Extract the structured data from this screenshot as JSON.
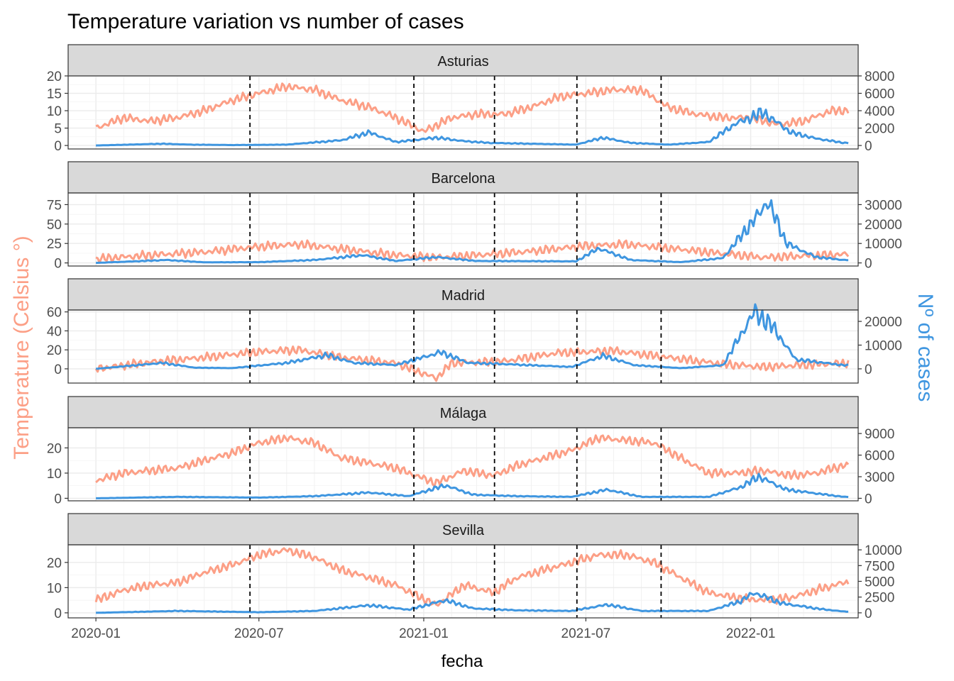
{
  "chart_data": {
    "type": "line",
    "title": "Temperature variation vs number of cases",
    "xlabel": "fecha",
    "ylabel_left": "Temperature (Celsius °)",
    "ylabel_right": "Nº of cases",
    "x_ticks": [
      "2020-01",
      "2020-07",
      "2021-01",
      "2021-07",
      "2022-01"
    ],
    "x_range": [
      "2019-12-01",
      "2022-05-01"
    ],
    "vertical_dashed_lines": [
      "2020-06-21",
      "2020-12-21",
      "2021-03-21",
      "2021-06-21",
      "2021-09-23"
    ],
    "grid": true,
    "series_colors": {
      "temperature": "#FC9F86",
      "cases": "#3F96E0"
    },
    "panels": [
      {
        "name": "Asturias",
        "temp_ticks": [
          0,
          5,
          10,
          15,
          20
        ],
        "case_ticks": [
          0,
          2000,
          4000,
          6000,
          8000
        ],
        "temp_range": [
          -1,
          20
        ],
        "cases_per_temp": 400,
        "temperature": [
          [
            "2020-01-01",
            5
          ],
          [
            "2020-02-01",
            8
          ],
          [
            "2020-03-01",
            7
          ],
          [
            "2020-04-01",
            8
          ],
          [
            "2020-05-01",
            10
          ],
          [
            "2020-06-01",
            13
          ],
          [
            "2020-07-01",
            15
          ],
          [
            "2020-08-01",
            17
          ],
          [
            "2020-09-01",
            16
          ],
          [
            "2020-10-01",
            13
          ],
          [
            "2020-11-01",
            11
          ],
          [
            "2020-12-01",
            8
          ],
          [
            "2021-01-01",
            4
          ],
          [
            "2021-02-01",
            8
          ],
          [
            "2021-03-01",
            9
          ],
          [
            "2021-04-01",
            9
          ],
          [
            "2021-05-01",
            11
          ],
          [
            "2021-06-01",
            14
          ],
          [
            "2021-07-01",
            15
          ],
          [
            "2021-08-01",
            16
          ],
          [
            "2021-09-01",
            16
          ],
          [
            "2021-10-01",
            11
          ],
          [
            "2021-11-01",
            9
          ],
          [
            "2021-12-01",
            8
          ],
          [
            "2022-01-01",
            8
          ],
          [
            "2022-02-01",
            6
          ],
          [
            "2022-03-01",
            7
          ],
          [
            "2022-04-01",
            10
          ]
        ],
        "cases": [
          [
            "2020-01-01",
            0
          ],
          [
            "2020-03-15",
            200
          ],
          [
            "2020-04-15",
            100
          ],
          [
            "2020-06-01",
            50
          ],
          [
            "2020-08-01",
            100
          ],
          [
            "2020-10-01",
            600
          ],
          [
            "2020-11-01",
            1500
          ],
          [
            "2020-12-01",
            400
          ],
          [
            "2021-01-15",
            900
          ],
          [
            "2021-02-15",
            500
          ],
          [
            "2021-03-15",
            300
          ],
          [
            "2021-05-01",
            200
          ],
          [
            "2021-06-20",
            100
          ],
          [
            "2021-07-20",
            900
          ],
          [
            "2021-08-20",
            300
          ],
          [
            "2021-10-01",
            100
          ],
          [
            "2021-11-15",
            400
          ],
          [
            "2021-12-15",
            2500
          ],
          [
            "2022-01-15",
            3800
          ],
          [
            "2022-02-15",
            1500
          ],
          [
            "2022-03-15",
            800
          ],
          [
            "2022-04-15",
            300
          ]
        ]
      },
      {
        "name": "Barcelona",
        "temp_ticks": [
          0,
          25,
          50,
          75
        ],
        "case_ticks": [
          0,
          10000,
          20000,
          30000
        ],
        "temp_range": [
          -4,
          90
        ],
        "cases_per_temp": 400,
        "temperature": [
          [
            "2020-01-01",
            5
          ],
          [
            "2020-03-01",
            10
          ],
          [
            "2020-05-01",
            14
          ],
          [
            "2020-07-01",
            21
          ],
          [
            "2020-08-15",
            24
          ],
          [
            "2020-10-01",
            18
          ],
          [
            "2020-12-01",
            10
          ],
          [
            "2021-01-15",
            7
          ],
          [
            "2021-03-01",
            10
          ],
          [
            "2021-05-01",
            15
          ],
          [
            "2021-07-01",
            22
          ],
          [
            "2021-08-15",
            24
          ],
          [
            "2021-10-01",
            19
          ],
          [
            "2021-12-01",
            12
          ],
          [
            "2022-01-15",
            7
          ],
          [
            "2022-03-01",
            9
          ],
          [
            "2022-04-15",
            11
          ]
        ],
        "cases": [
          [
            "2020-01-01",
            0
          ],
          [
            "2020-03-20",
            1500
          ],
          [
            "2020-05-01",
            300
          ],
          [
            "2020-07-01",
            400
          ],
          [
            "2020-09-01",
            1500
          ],
          [
            "2020-10-25",
            4000
          ],
          [
            "2020-12-01",
            1000
          ],
          [
            "2021-01-15",
            3000
          ],
          [
            "2021-03-01",
            1000
          ],
          [
            "2021-05-01",
            900
          ],
          [
            "2021-06-20",
            800
          ],
          [
            "2021-07-15",
            7500
          ],
          [
            "2021-08-20",
            1500
          ],
          [
            "2021-10-15",
            400
          ],
          [
            "2021-12-01",
            2500
          ],
          [
            "2021-12-25",
            16000
          ],
          [
            "2022-01-10",
            25000
          ],
          [
            "2022-01-20",
            32000
          ],
          [
            "2022-02-10",
            10000
          ],
          [
            "2022-03-15",
            3000
          ],
          [
            "2022-04-15",
            1500
          ]
        ]
      },
      {
        "name": "Madrid",
        "temp_ticks": [
          0,
          20,
          40,
          60
        ],
        "case_ticks": [
          0,
          10000,
          20000
        ],
        "temp_range": [
          -15,
          62
        ],
        "cases_per_temp": 400,
        "temperature": [
          [
            "2020-01-01",
            0
          ],
          [
            "2020-03-01",
            7
          ],
          [
            "2020-05-01",
            12
          ],
          [
            "2020-07-01",
            18
          ],
          [
            "2020-08-15",
            20
          ],
          [
            "2020-10-01",
            12
          ],
          [
            "2020-12-01",
            6
          ],
          [
            "2021-01-15",
            -10
          ],
          [
            "2021-02-01",
            6
          ],
          [
            "2021-04-01",
            8
          ],
          [
            "2021-06-01",
            17
          ],
          [
            "2021-08-01",
            19
          ],
          [
            "2021-10-01",
            12
          ],
          [
            "2021-12-01",
            5
          ],
          [
            "2022-01-15",
            2
          ],
          [
            "2022-03-01",
            4
          ],
          [
            "2022-04-15",
            6
          ]
        ],
        "cases": [
          [
            "2020-01-01",
            0
          ],
          [
            "2020-03-15",
            2500
          ],
          [
            "2020-04-20",
            500
          ],
          [
            "2020-06-01",
            300
          ],
          [
            "2020-08-01",
            2500
          ],
          [
            "2020-09-15",
            5800
          ],
          [
            "2020-10-15",
            2500
          ],
          [
            "2020-12-01",
            1600
          ],
          [
            "2021-01-20",
            7000
          ],
          [
            "2021-02-20",
            2500
          ],
          [
            "2021-04-01",
            2000
          ],
          [
            "2021-06-15",
            800
          ],
          [
            "2021-07-20",
            5500
          ],
          [
            "2021-08-25",
            1500
          ],
          [
            "2021-10-15",
            300
          ],
          [
            "2021-12-01",
            1500
          ],
          [
            "2022-01-05",
            24000
          ],
          [
            "2022-01-25",
            18000
          ],
          [
            "2022-02-20",
            4000
          ],
          [
            "2022-04-15",
            1500
          ]
        ]
      },
      {
        "name": "Málaga",
        "temp_ticks": [
          0,
          10,
          20
        ],
        "case_ticks": [
          0,
          3000,
          6000,
          9000
        ],
        "temp_range": [
          -1,
          28
        ],
        "cases_per_temp": 350,
        "temperature": [
          [
            "2020-01-01",
            7
          ],
          [
            "2020-02-01",
            10
          ],
          [
            "2020-03-01",
            11
          ],
          [
            "2020-04-01",
            12
          ],
          [
            "2020-05-01",
            15
          ],
          [
            "2020-06-01",
            18
          ],
          [
            "2020-07-01",
            22
          ],
          [
            "2020-08-01",
            24
          ],
          [
            "2020-09-01",
            22
          ],
          [
            "2020-10-01",
            16
          ],
          [
            "2020-11-01",
            14
          ],
          [
            "2020-12-01",
            12
          ],
          [
            "2021-01-15",
            6
          ],
          [
            "2021-02-15",
            11
          ],
          [
            "2021-03-20",
            9
          ],
          [
            "2021-04-15",
            13
          ],
          [
            "2021-05-15",
            16
          ],
          [
            "2021-06-15",
            19
          ],
          [
            "2021-07-15",
            24
          ],
          [
            "2021-08-15",
            23
          ],
          [
            "2021-09-15",
            22
          ],
          [
            "2021-10-15",
            16
          ],
          [
            "2021-11-15",
            10
          ],
          [
            "2021-12-15",
            10
          ],
          [
            "2022-01-15",
            11
          ],
          [
            "2022-02-15",
            9
          ],
          [
            "2022-03-15",
            10
          ],
          [
            "2022-04-15",
            13
          ]
        ],
        "cases": [
          [
            "2020-01-01",
            0
          ],
          [
            "2020-04-01",
            200
          ],
          [
            "2020-07-01",
            100
          ],
          [
            "2020-09-01",
            300
          ],
          [
            "2020-11-01",
            800
          ],
          [
            "2020-12-15",
            300
          ],
          [
            "2021-01-25",
            1800
          ],
          [
            "2021-02-25",
            500
          ],
          [
            "2021-04-15",
            300
          ],
          [
            "2021-06-15",
            200
          ],
          [
            "2021-07-25",
            1200
          ],
          [
            "2021-09-01",
            200
          ],
          [
            "2021-11-15",
            200
          ],
          [
            "2021-12-20",
            1500
          ],
          [
            "2022-01-10",
            3000
          ],
          [
            "2022-02-10",
            1200
          ],
          [
            "2022-03-20",
            600
          ],
          [
            "2022-04-15",
            200
          ]
        ]
      },
      {
        "name": "Sevilla",
        "temp_ticks": [
          0,
          10,
          20
        ],
        "case_ticks": [
          0,
          2500,
          5000,
          7500,
          10000
        ],
        "temp_range": [
          -2,
          27
        ],
        "cases_per_temp": 400,
        "temperature": [
          [
            "2020-01-01",
            5
          ],
          [
            "2020-02-01",
            9
          ],
          [
            "2020-03-01",
            11
          ],
          [
            "2020-04-01",
            12
          ],
          [
            "2020-05-01",
            16
          ],
          [
            "2020-06-01",
            19
          ],
          [
            "2020-07-01",
            23
          ],
          [
            "2020-08-01",
            25
          ],
          [
            "2020-09-01",
            22
          ],
          [
            "2020-10-01",
            17
          ],
          [
            "2020-11-01",
            14
          ],
          [
            "2020-12-01",
            11
          ],
          [
            "2021-01-15",
            3
          ],
          [
            "2021-02-15",
            11
          ],
          [
            "2021-03-20",
            8
          ],
          [
            "2021-04-15",
            14
          ],
          [
            "2021-05-15",
            17
          ],
          [
            "2021-06-15",
            20
          ],
          [
            "2021-07-15",
            23
          ],
          [
            "2021-08-15",
            23
          ],
          [
            "2021-09-15",
            20
          ],
          [
            "2021-10-15",
            14
          ],
          [
            "2021-11-15",
            8
          ],
          [
            "2021-12-15",
            6
          ],
          [
            "2022-01-15",
            5
          ],
          [
            "2022-02-15",
            6
          ],
          [
            "2022-03-15",
            9
          ],
          [
            "2022-04-15",
            12
          ]
        ],
        "cases": [
          [
            "2020-01-01",
            0
          ],
          [
            "2020-04-01",
            300
          ],
          [
            "2020-07-01",
            100
          ],
          [
            "2020-09-01",
            300
          ],
          [
            "2020-11-01",
            1200
          ],
          [
            "2020-12-15",
            500
          ],
          [
            "2021-01-25",
            2000
          ],
          [
            "2021-02-25",
            700
          ],
          [
            "2021-04-15",
            400
          ],
          [
            "2021-06-15",
            300
          ],
          [
            "2021-07-25",
            1300
          ],
          [
            "2021-09-01",
            300
          ],
          [
            "2021-11-15",
            300
          ],
          [
            "2021-12-20",
            1800
          ],
          [
            "2022-01-05",
            3200
          ],
          [
            "2022-02-05",
            1500
          ],
          [
            "2022-03-20",
            600
          ],
          [
            "2022-04-15",
            200
          ]
        ]
      }
    ]
  }
}
